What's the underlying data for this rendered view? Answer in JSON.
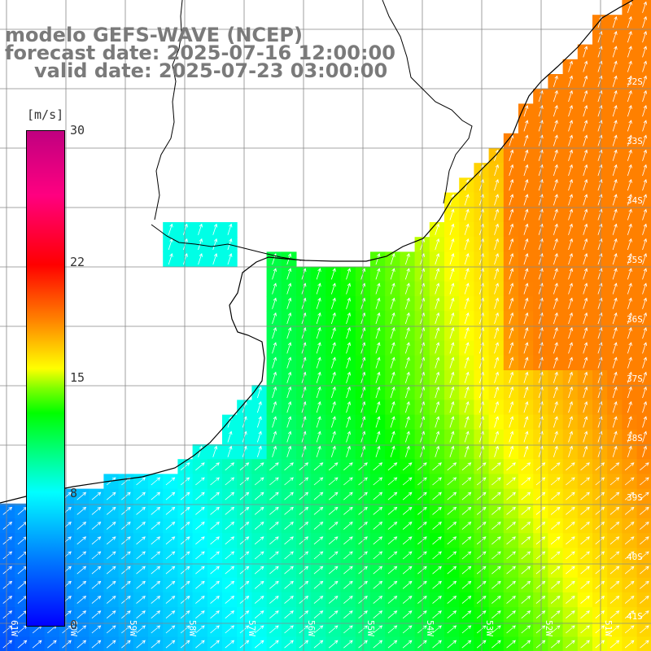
{
  "header": {
    "model_line": "modelo GEFS-WAVE (NCEP)",
    "forecast_line": "forecast date: 2025-07-16 12:00:00",
    "valid_line": "valid date: 2025-07-23 03:00:00"
  },
  "colorbar": {
    "unit": "[m/s]",
    "ticks": [
      {
        "label": "30",
        "value": 30
      },
      {
        "label": "22",
        "value": 22
      },
      {
        "label": "15",
        "value": 15
      },
      {
        "label": "8",
        "value": 8
      },
      {
        "label": "0",
        "value": 0
      }
    ],
    "range": [
      0,
      30
    ]
  },
  "map": {
    "lon_labels": [
      "61W",
      "60W",
      "59W",
      "58W",
      "57W",
      "56W",
      "55W",
      "54W",
      "53W",
      "52W",
      "51W"
    ],
    "lat_labels": [
      "32S",
      "33S",
      "34S",
      "35S",
      "36S",
      "37S",
      "38S",
      "39S",
      "40S",
      "41S"
    ],
    "field": "wind speed",
    "land_color": "#ffffff",
    "coast_color": "#000000",
    "grid_color": "#888888",
    "arrow_color": "#ffffff"
  }
}
